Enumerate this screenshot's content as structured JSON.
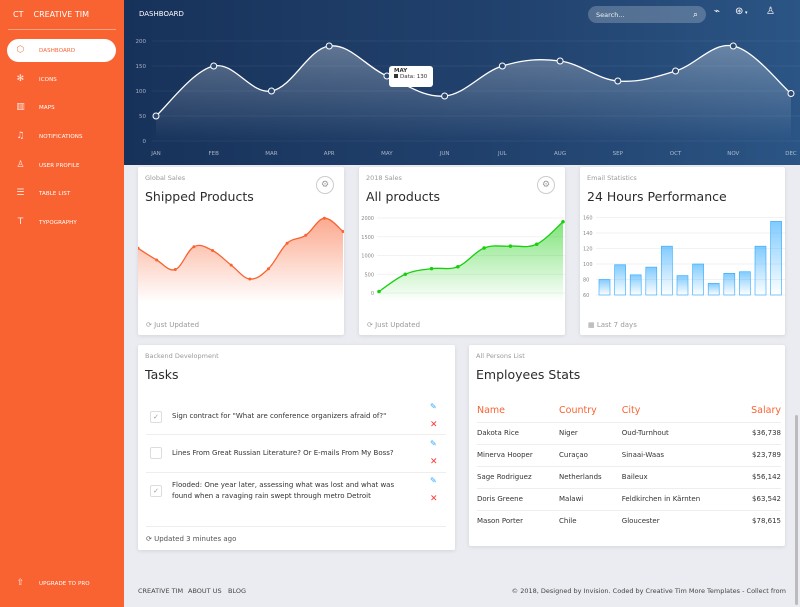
{
  "brand": {
    "short": "CT",
    "name": "CREATIVE TIM"
  },
  "sidebar": {
    "items": [
      {
        "label": "DASHBOARD",
        "icon": "box-icon",
        "active": true
      },
      {
        "label": "ICONS",
        "icon": "atom-icon"
      },
      {
        "label": "MAPS",
        "icon": "map-icon"
      },
      {
        "label": "NOTIFICATIONS",
        "icon": "bell-icon"
      },
      {
        "label": "USER PROFILE",
        "icon": "user-icon"
      },
      {
        "label": "TABLE LIST",
        "icon": "list-icon"
      },
      {
        "label": "TYPOGRAPHY",
        "icon": "text-icon"
      }
    ],
    "upgrade": "UPGRADE TO PRO"
  },
  "header": {
    "title": "DASHBOARD",
    "search_placeholder": "Search..."
  },
  "colors": {
    "primary": "#f96332",
    "header": "#1d3c66",
    "green": "#18ce0f",
    "blue": "#2ca8ff"
  },
  "chart_data": [
    {
      "type": "area",
      "categories": [
        "JAN",
        "FEB",
        "MAR",
        "APR",
        "MAY",
        "JUN",
        "JUL",
        "AUG",
        "SEP",
        "OCT",
        "NOV",
        "DEC"
      ],
      "values": [
        50,
        150,
        100,
        190,
        130,
        90,
        150,
        160,
        120,
        140,
        190,
        95
      ],
      "yticks": [
        "0",
        "50",
        "100",
        "150",
        "200"
      ],
      "ylim": [
        0,
        200
      ],
      "tooltip": {
        "title": "MAY",
        "text": "Data: 130"
      }
    },
    {
      "type": "area",
      "values": [
        542,
        480,
        430,
        550,
        530,
        453,
        380,
        434,
        568,
        610,
        700,
        630
      ]
    },
    {
      "type": "area",
      "values": [
        40,
        500,
        650,
        700,
        1200,
        1250,
        1300,
        1900
      ],
      "yticks": [
        "0",
        "500",
        "1000",
        "1500",
        "2000"
      ],
      "ylim": [
        0,
        2000
      ]
    },
    {
      "type": "bar",
      "values": [
        80,
        99,
        86,
        96,
        123,
        85,
        100,
        75,
        88,
        90,
        123,
        155
      ],
      "yticks": [
        "60",
        "80",
        "100",
        "120",
        "140",
        "160"
      ],
      "ylim": [
        60,
        160
      ]
    }
  ],
  "cards": [
    {
      "category": "Global Sales",
      "title": "Shipped Products",
      "stats": "Just Updated"
    },
    {
      "category": "2018 Sales",
      "title": "All products",
      "stats": "Just Updated"
    },
    {
      "category": "Email Statistics",
      "title": "24 Hours Performance",
      "stats": "Last 7 days"
    }
  ],
  "tasks": {
    "category": "Backend Development",
    "title": "Tasks",
    "items": [
      {
        "text": "Sign contract for \"What are conference organizers afraid of?\"",
        "checked": true
      },
      {
        "text": "Lines From Great Russian Literature? Or E-mails From My Boss?",
        "checked": false
      },
      {
        "text": "Flooded: One year later, assessing what was lost and what was found when a ravaging rain swept through metro Detroit",
        "checked": true
      }
    ],
    "stats": "Updated 3 minutes ago"
  },
  "employees": {
    "category": "All Persons List",
    "title": "Employees Stats",
    "columns": [
      "Name",
      "Country",
      "City",
      "Salary"
    ],
    "rows": [
      [
        "Dakota Rice",
        "Niger",
        "Oud-Turnhout",
        "$36,738"
      ],
      [
        "Minerva Hooper",
        "Curaçao",
        "Sinaai-Waas",
        "$23,789"
      ],
      [
        "Sage Rodriguez",
        "Netherlands",
        "Baileux",
        "$56,142"
      ],
      [
        "Doris Greene",
        "Malawi",
        "Feldkirchen in Kärnten",
        "$63,542"
      ],
      [
        "Mason Porter",
        "Chile",
        "Gloucester",
        "$78,615"
      ]
    ]
  },
  "footer": {
    "links": [
      "CREATIVE TIM",
      "ABOUT US",
      "BLOG"
    ],
    "copyright": "© 2018, Designed by Invision. Coded by Creative Tim More Templates - Collect from"
  }
}
